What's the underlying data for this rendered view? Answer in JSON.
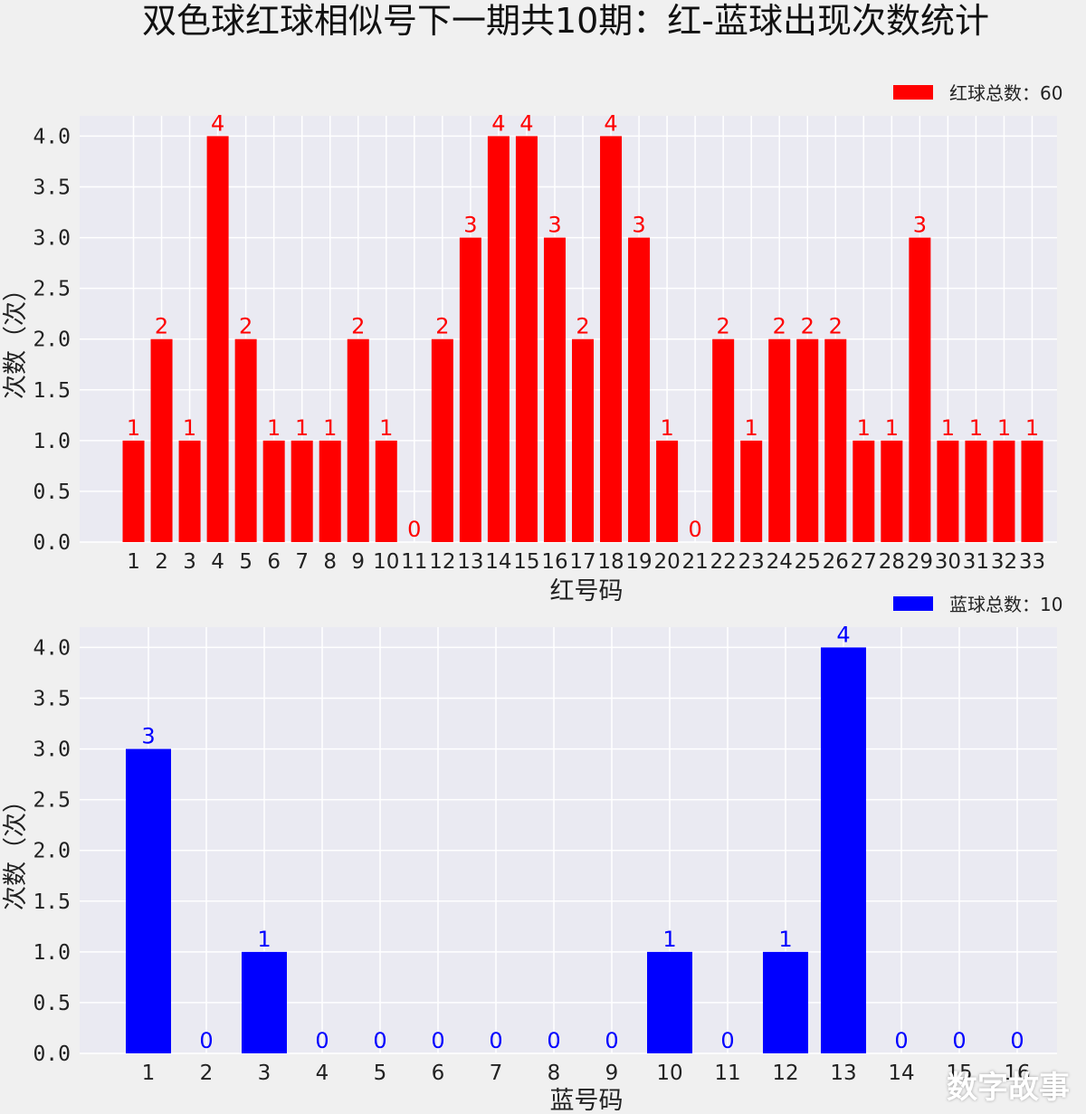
{
  "title": "双色球红球相似号下一期共10期：红-蓝球出现次数统计",
  "watermark": "数字故事",
  "chart_data": [
    {
      "type": "bar",
      "color": "#ff0000",
      "xlabel": "红号码",
      "ylabel": "次数（次）",
      "legend": "红球总数：60",
      "legend_position": "top-right",
      "grid": true,
      "ylim": [
        0,
        4.2
      ],
      "yticks": [
        "0.0",
        "0.5",
        "1.0",
        "1.5",
        "2.0",
        "2.5",
        "3.0",
        "3.5",
        "4.0"
      ],
      "categories": [
        "1",
        "2",
        "3",
        "4",
        "5",
        "6",
        "7",
        "8",
        "9",
        "10",
        "11",
        "12",
        "13",
        "14",
        "15",
        "16",
        "17",
        "18",
        "19",
        "20",
        "21",
        "22",
        "23",
        "24",
        "25",
        "26",
        "27",
        "28",
        "29",
        "30",
        "31",
        "32",
        "33"
      ],
      "values": [
        1,
        2,
        1,
        4,
        2,
        1,
        1,
        1,
        2,
        1,
        0,
        2,
        3,
        4,
        4,
        3,
        2,
        4,
        3,
        1,
        0,
        2,
        1,
        2,
        2,
        2,
        1,
        1,
        3,
        1,
        1,
        1,
        1
      ]
    },
    {
      "type": "bar",
      "color": "#0000ff",
      "xlabel": "蓝号码",
      "ylabel": "次数（次）",
      "legend": "蓝球总数：10",
      "legend_position": "top-right",
      "grid": true,
      "ylim": [
        0,
        4.2
      ],
      "yticks": [
        "0.0",
        "0.5",
        "1.0",
        "1.5",
        "2.0",
        "2.5",
        "3.0",
        "3.5",
        "4.0"
      ],
      "categories": [
        "1",
        "2",
        "3",
        "4",
        "5",
        "6",
        "7",
        "8",
        "9",
        "10",
        "11",
        "12",
        "13",
        "14",
        "15",
        "16"
      ],
      "values": [
        3,
        0,
        1,
        0,
        0,
        0,
        0,
        0,
        0,
        1,
        0,
        1,
        4,
        0,
        0,
        0
      ]
    }
  ]
}
